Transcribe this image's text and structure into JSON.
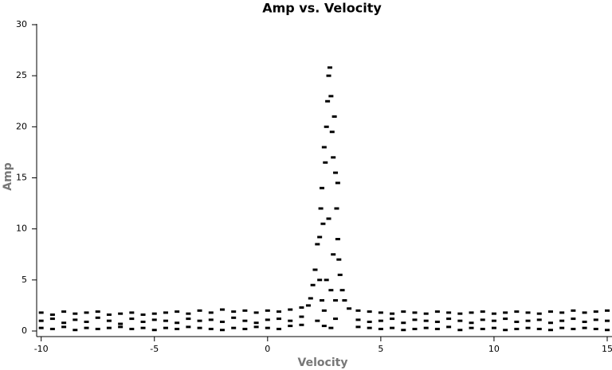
{
  "chart_data": {
    "type": "scatter",
    "title": "Amp vs. Velocity",
    "x_label": "Velocity",
    "y_label": "Amp",
    "xlim": [
      -10.2,
      15
    ],
    "ylim": [
      0,
      30
    ],
    "xticks": [
      -10,
      -5,
      0,
      5,
      10,
      15
    ],
    "yticks": [
      0,
      5,
      10,
      15,
      20,
      25,
      30
    ],
    "series": [
      {
        "color": "#000000",
        "x": [
          -10,
          -9.5,
          -9,
          -8.5,
          -8,
          -7.5,
          -7,
          -6.5,
          -6,
          -5.5,
          -5,
          -4.5,
          -4,
          -3.5,
          -3,
          -2.5,
          -2,
          -1.5,
          -1,
          -0.5,
          0,
          0.5,
          1,
          1.5,
          4,
          4.5,
          5,
          5.5,
          6,
          6.5,
          7,
          7.5,
          8,
          8.5,
          9,
          9.5,
          10,
          10.5,
          11,
          11.5,
          12,
          12.5,
          13,
          13.5,
          14,
          14.5,
          15,
          -10,
          -9.5,
          -9,
          -8.5,
          -8,
          -7.5,
          -7,
          -6.5,
          -6,
          -5.5,
          -5,
          -4.5,
          -4,
          -3.5,
          -3,
          -2.5,
          -2,
          -1.5,
          -1,
          -0.5,
          0,
          0.5,
          1,
          1.5,
          4,
          4.5,
          5,
          5.5,
          6,
          6.5,
          7,
          7.5,
          8,
          8.5,
          9,
          9.5,
          10,
          10.5,
          11,
          11.5,
          12,
          12.5,
          13,
          13.5,
          14,
          14.5,
          15,
          -10,
          -9.5,
          -9,
          -8.5,
          -8,
          -7.5,
          -7,
          -6.5,
          -6,
          -5.5,
          -5,
          -4.5,
          -4,
          -3.5,
          -3,
          -2.5,
          -2,
          -1.5,
          -1,
          -0.5,
          0,
          0.5,
          1,
          1.5,
          4,
          4.5,
          5,
          5.5,
          6,
          6.5,
          7,
          7.5,
          8,
          8.5,
          9,
          9.5,
          10,
          10.5,
          11,
          11.5,
          12,
          12.5,
          13,
          13.5,
          14,
          14.5,
          15,
          1.8,
          1.9,
          2.0,
          2.1,
          2.2,
          2.3,
          2.35,
          2.4,
          2.45,
          2.5,
          2.55,
          2.6,
          2.65,
          2.7,
          2.75,
          2.8,
          2.85,
          2.9,
          2.95,
          3.0,
          3.05,
          3.1,
          3.15,
          3.2,
          3.3,
          3.4,
          3.6,
          2.2,
          2.5,
          2.8,
          3.0,
          2.4,
          2.6,
          2.9,
          2.7,
          3.1,
          2.5,
          2.8,
          3.0,
          2.3
        ],
        "y": [
          1.8,
          1.6,
          1.9,
          1.7,
          1.8,
          1.9,
          1.6,
          1.7,
          1.8,
          1.6,
          1.7,
          1.8,
          1.9,
          1.7,
          2.0,
          1.8,
          2.1,
          1.9,
          2.0,
          1.8,
          2.0,
          1.9,
          2.1,
          2.3,
          2.0,
          1.9,
          1.8,
          1.7,
          1.9,
          1.8,
          1.7,
          1.9,
          1.8,
          1.7,
          1.8,
          1.9,
          1.7,
          1.8,
          1.9,
          1.8,
          1.7,
          1.9,
          1.8,
          2.0,
          1.8,
          1.9,
          2.0,
          1.0,
          1.2,
          0.8,
          1.1,
          0.9,
          1.3,
          1.0,
          0.7,
          1.2,
          0.9,
          1.1,
          1.0,
          0.8,
          1.2,
          1.0,
          1.1,
          0.9,
          1.3,
          1.0,
          0.8,
          1.1,
          1.2,
          1.0,
          1.4,
          1.1,
          0.9,
          1.0,
          1.2,
          0.8,
          1.1,
          1.0,
          0.9,
          1.2,
          1.0,
          0.8,
          1.1,
          1.0,
          1.2,
          0.9,
          1.0,
          1.1,
          0.8,
          1.0,
          1.2,
          0.9,
          1.1,
          1.0,
          0.3,
          0.2,
          0.4,
          0.1,
          0.3,
          0.2,
          0.3,
          0.4,
          0.2,
          0.3,
          0.1,
          0.3,
          0.2,
          0.4,
          0.3,
          0.2,
          0.1,
          0.3,
          0.2,
          0.4,
          0.3,
          0.2,
          0.5,
          0.6,
          0.4,
          0.3,
          0.2,
          0.3,
          0.1,
          0.2,
          0.3,
          0.2,
          0.4,
          0.1,
          0.3,
          0.2,
          0.3,
          0.1,
          0.2,
          0.3,
          0.2,
          0.1,
          0.3,
          0.2,
          0.3,
          0.2,
          0.1,
          2.5,
          3.2,
          4.5,
          6.0,
          8.5,
          9.2,
          12.0,
          14.0,
          10.5,
          18.0,
          16.5,
          20.0,
          22.5,
          25.0,
          25.8,
          23.0,
          19.5,
          17.0,
          21.0,
          15.5,
          12.0,
          9.0,
          7.0,
          5.5,
          4.0,
          3.0,
          2.2,
          1.0,
          0.5,
          0.3,
          1.2,
          3.0,
          5.0,
          7.5,
          11.0,
          14.5,
          2.0,
          4.0,
          3.0,
          5.0
        ]
      }
    ]
  }
}
